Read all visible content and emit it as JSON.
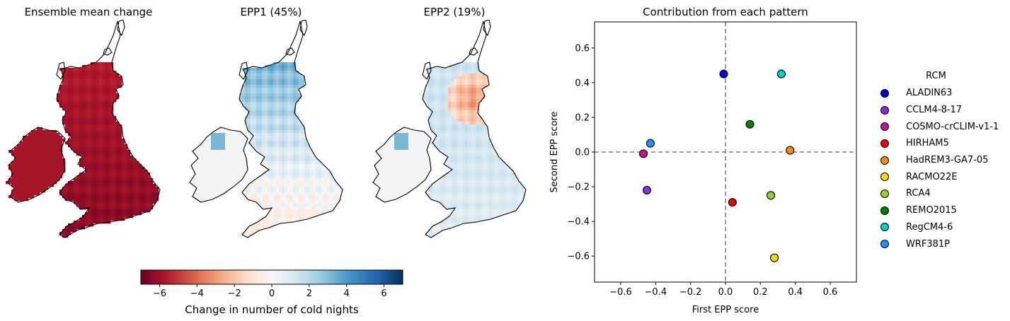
{
  "colors": {
    "diverging_scale": [
      "#67001f",
      "#b2182b",
      "#d6604d",
      "#f4a582",
      "#fddbc7",
      "#f7f7f7",
      "#d1e5f0",
      "#92c5de",
      "#4393c3",
      "#2166ac",
      "#053061"
    ],
    "map_outline": "#000000"
  },
  "maps": [
    {
      "title": "Ensemble mean change",
      "shading": "strong-warm"
    },
    {
      "title": "EPP1 (45%)",
      "shading": "cool-north"
    },
    {
      "title": "EPP2 (19%)",
      "shading": "warm-north"
    }
  ],
  "colorbar": {
    "label": "Change in number of cold nights",
    "range": [
      -7,
      7
    ],
    "ticks": [
      -6,
      -4,
      -2,
      0,
      2,
      4,
      6
    ],
    "tick_labels": [
      "−6",
      "−4",
      "−2",
      "0",
      "2",
      "4",
      "6"
    ]
  },
  "chart_data": {
    "type": "scatter",
    "title": "Contribution from each pattern",
    "xlabel": "First EPP score",
    "ylabel": "Second EPP score",
    "xlim": [
      -0.75,
      0.75
    ],
    "ylim": [
      -0.75,
      0.75
    ],
    "xticks": [
      -0.6,
      -0.4,
      -0.2,
      0.0,
      0.2,
      0.4,
      0.6
    ],
    "xtick_labels": [
      "−0.6",
      "−0.4",
      "−0.2",
      "0.0",
      "0.2",
      "0.4",
      "0.6"
    ],
    "yticks": [
      -0.6,
      -0.4,
      -0.2,
      0.0,
      0.2,
      0.4,
      0.6
    ],
    "ytick_labels": [
      "−0.6",
      "−0.4",
      "−0.2",
      "0.0",
      "0.2",
      "0.4",
      "0.6"
    ],
    "reference_lines": {
      "x": 0,
      "y": 0,
      "style": "dashed",
      "color": "#808080"
    },
    "legend_title": "RCM",
    "legend_position": "outside-right",
    "series": [
      {
        "name": "ALADIN63",
        "color": "#0000cd",
        "x": -0.01,
        "y": 0.45
      },
      {
        "name": "CCLM4-8-17",
        "color": "#8a2be2",
        "x": -0.45,
        "y": -0.22
      },
      {
        "name": "COSMO-crCLIM-v1-1",
        "color": "#c71585",
        "x": -0.47,
        "y": -0.01
      },
      {
        "name": "HIRHAM5",
        "color": "#ee0000",
        "x": 0.04,
        "y": -0.29
      },
      {
        "name": "HadREM3-GA7-05",
        "color": "#ff8c00",
        "x": 0.37,
        "y": 0.01
      },
      {
        "name": "RACMO22E",
        "color": "#ffd700",
        "x": 0.28,
        "y": -0.61
      },
      {
        "name": "RCA4",
        "color": "#9acd32",
        "x": 0.26,
        "y": -0.25
      },
      {
        "name": "REMO2015",
        "color": "#008000",
        "x": 0.14,
        "y": 0.16
      },
      {
        "name": "RegCM4-6",
        "color": "#00ced1",
        "x": 0.32,
        "y": 0.45
      },
      {
        "name": "WRF381P",
        "color": "#1e90ff",
        "x": -0.43,
        "y": 0.05
      }
    ]
  }
}
